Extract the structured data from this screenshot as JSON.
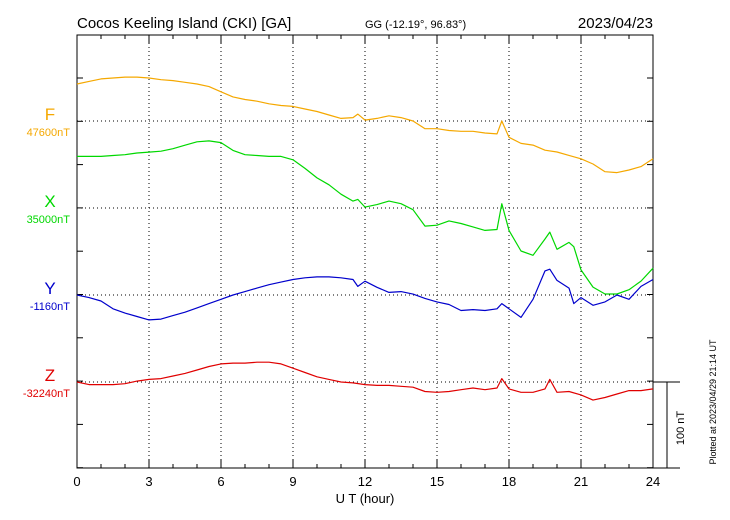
{
  "header": {
    "station": "Cocos Keeling Island (CKI)  [GA]",
    "coords": "GG (-12.19°,  96.83°)",
    "date": "2023/04/23"
  },
  "axis": {
    "xlabel": "U T (hour)",
    "xticks": [
      "0",
      "3",
      "6",
      "9",
      "12",
      "15",
      "18",
      "21",
      "24"
    ],
    "scale_label": "100 nT"
  },
  "footer": {
    "plotted": "Plotted at 2023/04/29 21:14 UT"
  },
  "channels": [
    {
      "id": "F",
      "letter": "F",
      "base": "47600nT",
      "color": "#f5a800"
    },
    {
      "id": "X",
      "letter": "X",
      "base": "35000nT",
      "color": "#00d800"
    },
    {
      "id": "Y",
      "letter": "Y",
      "base": "-1160nT",
      "color": "#0000cc"
    },
    {
      "id": "Z",
      "letter": "Z",
      "base": "-32240nT",
      "color": "#e00000"
    }
  ],
  "chart_data": {
    "type": "line",
    "title": "Cocos Keeling Island (CKI)  [GA]",
    "xlabel": "U T (hour)",
    "xlim": [
      0,
      24
    ],
    "units": "nT",
    "scale_bar_nT": 100,
    "grid": true,
    "series": [
      {
        "name": "F",
        "baseline_nT": 47600,
        "color": "#f5a800",
        "x": [
          0,
          0.5,
          1,
          1.5,
          2,
          2.5,
          3,
          3.5,
          4,
          4.5,
          5,
          5.5,
          6,
          6.5,
          7,
          7.5,
          8,
          8.5,
          9,
          9.5,
          10,
          10.5,
          11,
          11.5,
          11.7,
          12,
          12.5,
          13,
          13.5,
          14,
          14.5,
          15,
          15.5,
          16,
          16.5,
          17,
          17.5,
          17.7,
          18,
          18.5,
          19,
          19.5,
          20,
          20.5,
          21,
          21.5,
          22,
          22.5,
          23,
          23.5,
          24
        ],
        "delta_nT": [
          43,
          46,
          49,
          50,
          51,
          51,
          50,
          48,
          47,
          45,
          43,
          40,
          34,
          28,
          25,
          23,
          20,
          18,
          17,
          14,
          11,
          7,
          3,
          4,
          8,
          1,
          3,
          6,
          4,
          0,
          -9,
          -9,
          -11,
          -12,
          -12,
          -14,
          -15,
          0,
          -19,
          -26,
          -28,
          -34,
          -36,
          -40,
          -44,
          -50,
          -59,
          -60,
          -57,
          -53,
          -44
        ]
      },
      {
        "name": "X",
        "baseline_nT": 35000,
        "color": "#00d800",
        "x": [
          0,
          0.5,
          1,
          1.5,
          2,
          2.5,
          3,
          3.5,
          4,
          4.5,
          5,
          5.5,
          6,
          6.5,
          7,
          7.5,
          8,
          8.5,
          9,
          9.5,
          10,
          10.5,
          11,
          11.5,
          11.7,
          12,
          12.5,
          13,
          13.5,
          14,
          14.5,
          15,
          15.5,
          16,
          16.5,
          17,
          17.5,
          17.7,
          18,
          18.5,
          19,
          19.5,
          19.7,
          20,
          20.5,
          20.7,
          21,
          21.5,
          22,
          22.5,
          23,
          23.5,
          24
        ],
        "delta_nT": [
          60,
          60,
          60,
          61,
          62,
          64,
          65,
          66,
          69,
          73,
          77,
          78,
          76,
          67,
          62,
          61,
          60,
          60,
          56,
          46,
          35,
          27,
          16,
          8,
          10,
          1,
          4,
          8,
          5,
          -2,
          -21,
          -20,
          -15,
          -18,
          -22,
          -26,
          -25,
          5,
          -26,
          -50,
          -55,
          -36,
          -28,
          -48,
          -40,
          -45,
          -72,
          -92,
          -100,
          -100,
          -95,
          -85,
          -70
        ]
      },
      {
        "name": "Y",
        "baseline_nT": -1160,
        "color": "#0000cc",
        "x": [
          0,
          0.5,
          1,
          1.5,
          2,
          2.5,
          3,
          3.5,
          4,
          4.5,
          5,
          5.5,
          6,
          6.5,
          7,
          7.5,
          8,
          8.5,
          9,
          9.5,
          10,
          10.5,
          11,
          11.5,
          11.7,
          12,
          12.5,
          13,
          13.5,
          14,
          14.5,
          15,
          15.5,
          16,
          16.5,
          17,
          17.5,
          17.7,
          18,
          18.5,
          19,
          19.5,
          19.7,
          20,
          20.5,
          20.7,
          21,
          21.5,
          22,
          22.5,
          23,
          23.5,
          24
        ],
        "delta_nT": [
          0,
          -3,
          -7,
          -16,
          -21,
          -25,
          -29,
          -28,
          -24,
          -20,
          -15,
          -10,
          -5,
          0,
          4,
          8,
          12,
          15,
          18,
          20,
          21,
          21,
          20,
          18,
          10,
          16,
          9,
          3,
          4,
          1,
          -4,
          -8,
          -11,
          -18,
          -17,
          -18,
          -16,
          -10,
          -16,
          -26,
          -5,
          28,
          30,
          17,
          8,
          -10,
          -3,
          -12,
          -8,
          0,
          -5,
          10,
          18
        ]
      },
      {
        "name": "Z",
        "baseline_nT": -32240,
        "color": "#e00000",
        "x": [
          0,
          0.5,
          1,
          1.5,
          2,
          2.5,
          3,
          3.5,
          4,
          4.5,
          5,
          5.5,
          6,
          6.5,
          7,
          7.5,
          8,
          8.5,
          9,
          9.5,
          10,
          10.5,
          11,
          11.5,
          12,
          12.5,
          13,
          13.5,
          14,
          14.5,
          15,
          15.5,
          16,
          16.5,
          17,
          17.5,
          17.7,
          18,
          18.5,
          19,
          19.5,
          19.7,
          20,
          20.5,
          21,
          21.5,
          22,
          22.5,
          23,
          23.5,
          24
        ],
        "delta_nT": [
          0,
          -3,
          -3,
          -3,
          -2,
          1,
          3,
          4,
          7,
          10,
          14,
          18,
          21,
          22,
          22,
          23,
          23,
          21,
          16,
          11,
          6,
          3,
          0,
          -1,
          -3,
          -4,
          -4,
          -5,
          -6,
          -11,
          -12,
          -11,
          -9,
          -7,
          -9,
          -7,
          4,
          -8,
          -12,
          -12,
          -8,
          3,
          -12,
          -11,
          -15,
          -21,
          -18,
          -14,
          -10,
          -10,
          -8
        ]
      }
    ]
  }
}
